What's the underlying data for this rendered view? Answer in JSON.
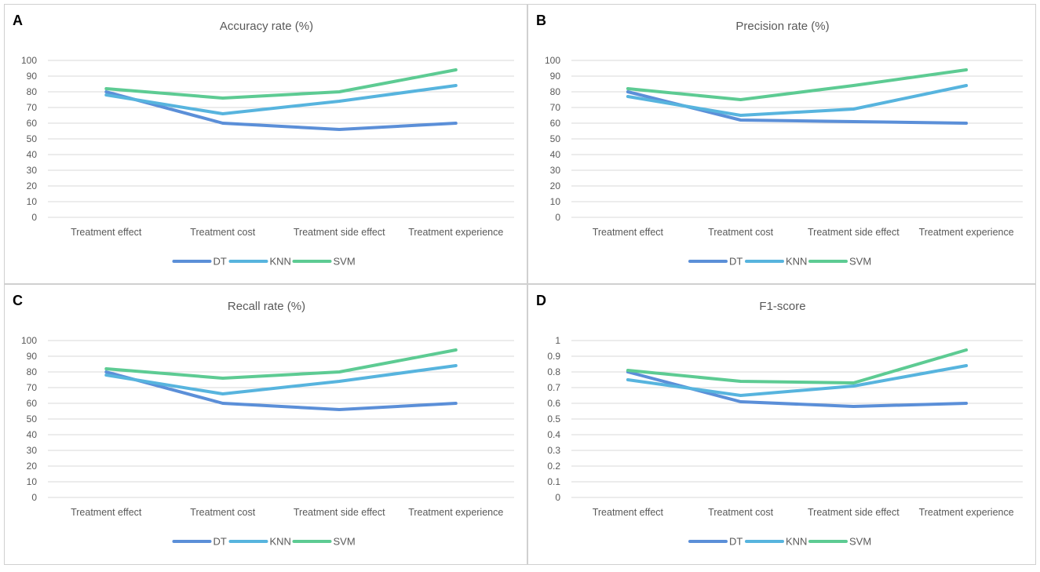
{
  "colors": {
    "DT": "#5b8fd8",
    "KNN": "#57b4de",
    "SVM": "#5dcb93",
    "grid": "#d9d9d9",
    "text": "#595959"
  },
  "chart_data": [
    {
      "letter": "A",
      "type": "line",
      "title": "Accuracy rate  (%)",
      "categories": [
        "Treatment effect",
        "Treatment cost",
        "Treatment side effect",
        "Treatment experience"
      ],
      "yticks": [
        "0",
        "10",
        "20",
        "30",
        "40",
        "50",
        "60",
        "70",
        "80",
        "90",
        "100"
      ],
      "ylim": [
        0,
        100
      ],
      "legend_position": "bottom",
      "series": [
        {
          "name": "DT",
          "values": [
            80,
            60,
            56,
            60
          ]
        },
        {
          "name": "KNN",
          "values": [
            78,
            66,
            74,
            84
          ]
        },
        {
          "name": "SVM",
          "values": [
            82,
            76,
            80,
            94
          ]
        }
      ]
    },
    {
      "letter": "B",
      "type": "line",
      "title": "Precision rate  (%)",
      "categories": [
        "Treatment effect",
        "Treatment cost",
        "Treatment side effect",
        "Treatment experience"
      ],
      "yticks": [
        "0",
        "10",
        "20",
        "30",
        "40",
        "50",
        "60",
        "70",
        "80",
        "90",
        "100"
      ],
      "ylim": [
        0,
        100
      ],
      "legend_position": "bottom",
      "series": [
        {
          "name": "DT",
          "values": [
            80,
            62,
            61,
            60
          ]
        },
        {
          "name": "KNN",
          "values": [
            77,
            65,
            69,
            84
          ]
        },
        {
          "name": "SVM",
          "values": [
            82,
            75,
            84,
            94
          ]
        }
      ]
    },
    {
      "letter": "C",
      "type": "line",
      "title": "Recall rate (%)",
      "categories": [
        "Treatment effect",
        "Treatment cost",
        "Treatment side effect",
        "Treatment experience"
      ],
      "yticks": [
        "0",
        "10",
        "20",
        "30",
        "40",
        "50",
        "60",
        "70",
        "80",
        "90",
        "100"
      ],
      "ylim": [
        0,
        100
      ],
      "legend_position": "bottom",
      "series": [
        {
          "name": "DT",
          "values": [
            80,
            60,
            56,
            60
          ]
        },
        {
          "name": "KNN",
          "values": [
            78,
            66,
            74,
            84
          ]
        },
        {
          "name": "SVM",
          "values": [
            82,
            76,
            80,
            94
          ]
        }
      ]
    },
    {
      "letter": "D",
      "type": "line",
      "title": "F1-score",
      "categories": [
        "Treatment effect",
        "Treatment cost",
        "Treatment side effect",
        "Treatment experience"
      ],
      "yticks": [
        "0",
        "0.1",
        "0.2",
        "0.3",
        "0.4",
        "0.5",
        "0.6",
        "0.7",
        "0.8",
        "0.9",
        "1"
      ],
      "ylim": [
        0,
        1
      ],
      "legend_position": "bottom",
      "series": [
        {
          "name": "DT",
          "values": [
            0.8,
            0.61,
            0.58,
            0.6
          ]
        },
        {
          "name": "KNN",
          "values": [
            0.75,
            0.65,
            0.71,
            0.84
          ]
        },
        {
          "name": "SVM",
          "values": [
            0.81,
            0.74,
            0.73,
            0.94
          ]
        }
      ]
    }
  ]
}
